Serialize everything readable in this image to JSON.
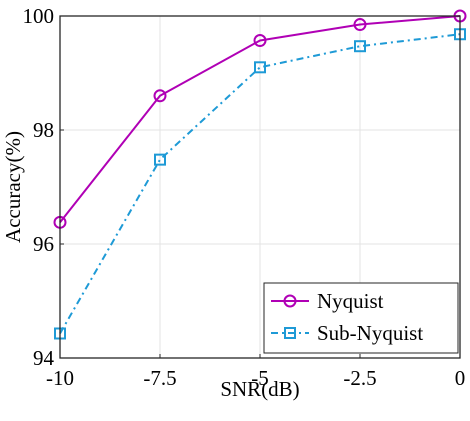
{
  "chart_data": {
    "type": "line",
    "xlabel": "SNR(dB)",
    "ylabel": "Accuracy(%)",
    "xlim": [
      -10,
      0
    ],
    "ylim": [
      94,
      100
    ],
    "x": [
      -10,
      -7.5,
      -5,
      -2.5,
      0
    ],
    "x_tick_labels": [
      "-10",
      "-7.5",
      "-5",
      "-2.5",
      "0"
    ],
    "y_ticks": [
      94,
      96,
      98,
      100
    ],
    "y_tick_labels": [
      "94",
      "96",
      "98",
      "100"
    ],
    "grid": true,
    "legend_position": "bottom-right",
    "series": [
      {
        "name": "Nyquist",
        "values": [
          96.38,
          98.6,
          99.57,
          99.85,
          100.0
        ],
        "color": "#b000b5",
        "marker": "circle",
        "line_style": "solid"
      },
      {
        "name": "Sub-Nyquist",
        "values": [
          94.43,
          97.48,
          99.1,
          99.47,
          99.68
        ],
        "color": "#1e9ad6",
        "marker": "square",
        "line_style": "dashdot"
      }
    ]
  }
}
